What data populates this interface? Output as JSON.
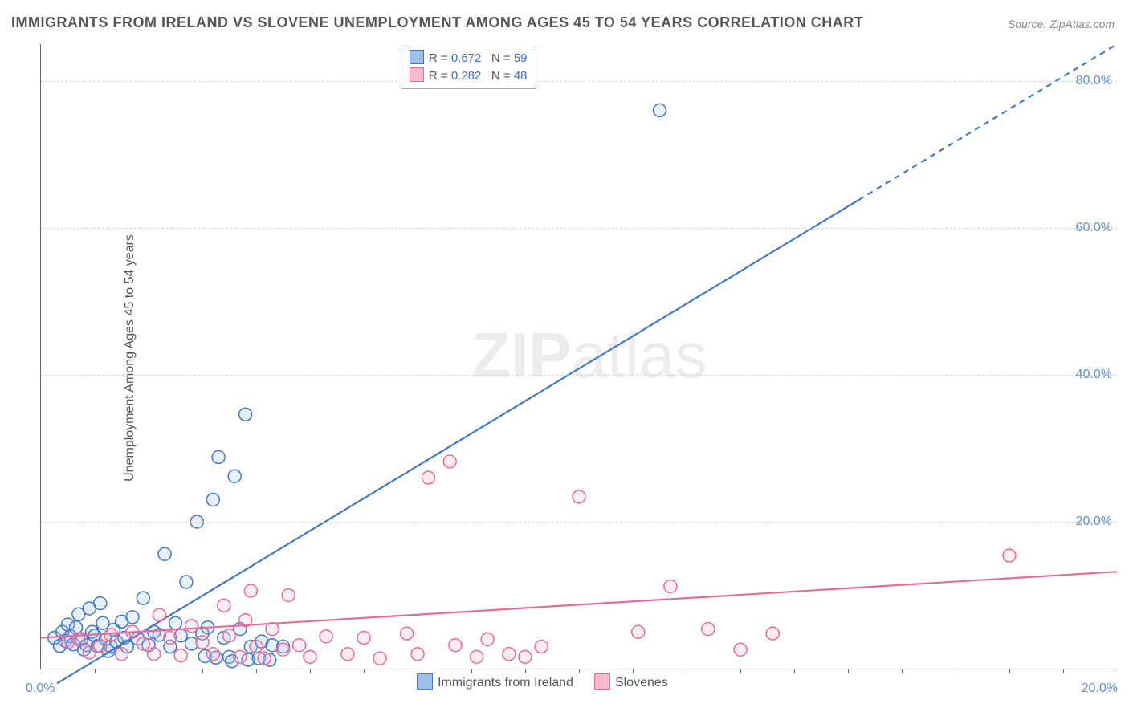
{
  "title": "IMMIGRANTS FROM IRELAND VS SLOVENE UNEMPLOYMENT AMONG AGES 45 TO 54 YEARS CORRELATION CHART",
  "source_label": "Source: ZipAtlas.com",
  "ylabel": "Unemployment Among Ages 45 to 54 years",
  "watermark_a": "ZIP",
  "watermark_b": "atlas",
  "chart": {
    "type": "scatter-with-regression",
    "xlim": [
      0,
      20
    ],
    "ylim": [
      0,
      85
    ],
    "x_origin_label": "0.0%",
    "x_end_label": "20.0%",
    "y_ticks": [
      {
        "v": 20,
        "label": "20.0%"
      },
      {
        "v": 40,
        "label": "40.0%"
      },
      {
        "v": 60,
        "label": "60.0%"
      },
      {
        "v": 80,
        "label": "80.0%"
      }
    ],
    "x_minor_tick_step": 1,
    "background_color": "#ffffff",
    "grid_color": "#d8d8d8",
    "axis_color": "#666666",
    "tick_label_color": "#5b8fd6",
    "marker_radius": 8,
    "marker_stroke_width": 1.5,
    "marker_fill_opacity": 0.25,
    "line_width": 2.2,
    "series": [
      {
        "id": "ireland",
        "label": "Immigrants from Ireland",
        "color_stroke": "#3f78c9",
        "color_fill": "#9fc0e8",
        "R": "0.672",
        "N": "59",
        "regression": {
          "x1": 0.3,
          "y1": -2,
          "x2": 20,
          "y2": 85,
          "dash_from_x": 15.2
        },
        "points": [
          [
            0.25,
            4.2
          ],
          [
            0.35,
            3.1
          ],
          [
            0.4,
            5.0
          ],
          [
            0.45,
            3.8
          ],
          [
            0.5,
            6.0
          ],
          [
            0.55,
            4.4
          ],
          [
            0.6,
            3.3
          ],
          [
            0.65,
            5.6
          ],
          [
            0.7,
            7.4
          ],
          [
            0.75,
            4.0
          ],
          [
            0.8,
            2.6
          ],
          [
            0.85,
            3.2
          ],
          [
            0.9,
            8.2
          ],
          [
            0.95,
            5.0
          ],
          [
            1.0,
            4.5
          ],
          [
            1.05,
            3.1
          ],
          [
            1.1,
            8.9
          ],
          [
            1.15,
            6.2
          ],
          [
            1.2,
            4.0
          ],
          [
            1.25,
            2.4
          ],
          [
            1.3,
            3.0
          ],
          [
            1.35,
            5.3
          ],
          [
            1.4,
            3.7
          ],
          [
            1.5,
            6.4
          ],
          [
            1.55,
            4.2
          ],
          [
            1.6,
            3.0
          ],
          [
            1.7,
            7.0
          ],
          [
            1.8,
            4.1
          ],
          [
            1.9,
            9.6
          ],
          [
            2.0,
            3.2
          ],
          [
            2.1,
            5.0
          ],
          [
            2.2,
            4.6
          ],
          [
            2.3,
            15.6
          ],
          [
            2.4,
            3.0
          ],
          [
            2.5,
            6.2
          ],
          [
            2.6,
            4.5
          ],
          [
            2.7,
            11.8
          ],
          [
            2.8,
            3.4
          ],
          [
            2.9,
            20.0
          ],
          [
            3.0,
            4.8
          ],
          [
            3.05,
            1.7
          ],
          [
            3.1,
            5.6
          ],
          [
            3.2,
            23.0
          ],
          [
            3.25,
            1.5
          ],
          [
            3.3,
            28.8
          ],
          [
            3.4,
            4.2
          ],
          [
            3.5,
            1.6
          ],
          [
            3.55,
            1.0
          ],
          [
            3.6,
            26.2
          ],
          [
            3.7,
            5.4
          ],
          [
            3.8,
            34.6
          ],
          [
            3.85,
            1.2
          ],
          [
            3.9,
            3.0
          ],
          [
            4.05,
            1.4
          ],
          [
            4.1,
            3.7
          ],
          [
            4.25,
            1.2
          ],
          [
            4.3,
            3.2
          ],
          [
            4.5,
            3.0
          ],
          [
            11.5,
            76.0
          ]
        ]
      },
      {
        "id": "slovenes",
        "label": "Slovenes",
        "color_stroke": "#e76a9a",
        "color_fill": "#f6b9cf",
        "R": "0.282",
        "N": "48",
        "regression": {
          "x1": 0,
          "y1": 4.2,
          "x2": 20,
          "y2": 13.2,
          "dash_from_x": 999
        },
        "points": [
          [
            0.5,
            3.6
          ],
          [
            0.7,
            4.0
          ],
          [
            0.9,
            2.2
          ],
          [
            1.1,
            3.1
          ],
          [
            1.3,
            4.6
          ],
          [
            1.5,
            2.0
          ],
          [
            1.7,
            5.0
          ],
          [
            1.9,
            3.4
          ],
          [
            2.1,
            2.0
          ],
          [
            2.2,
            7.3
          ],
          [
            2.4,
            4.2
          ],
          [
            2.6,
            1.8
          ],
          [
            2.8,
            5.8
          ],
          [
            3.0,
            3.6
          ],
          [
            3.2,
            2.0
          ],
          [
            3.4,
            8.6
          ],
          [
            3.5,
            4.5
          ],
          [
            3.7,
            1.6
          ],
          [
            3.8,
            6.6
          ],
          [
            3.9,
            10.6
          ],
          [
            4.0,
            3.0
          ],
          [
            4.15,
            1.4
          ],
          [
            4.3,
            5.4
          ],
          [
            4.5,
            2.6
          ],
          [
            4.6,
            10.0
          ],
          [
            4.8,
            3.2
          ],
          [
            5.0,
            1.6
          ],
          [
            5.3,
            4.4
          ],
          [
            5.7,
            2.0
          ],
          [
            6.0,
            4.2
          ],
          [
            6.3,
            1.4
          ],
          [
            6.8,
            4.8
          ],
          [
            7.0,
            2.0
          ],
          [
            7.2,
            26.0
          ],
          [
            7.6,
            28.2
          ],
          [
            7.7,
            3.2
          ],
          [
            8.1,
            1.6
          ],
          [
            8.3,
            4.0
          ],
          [
            8.7,
            2.0
          ],
          [
            9.0,
            1.6
          ],
          [
            9.3,
            3.0
          ],
          [
            10.0,
            23.4
          ],
          [
            11.1,
            5.0
          ],
          [
            11.7,
            11.2
          ],
          [
            12.4,
            5.4
          ],
          [
            13.0,
            2.6
          ],
          [
            13.6,
            4.8
          ],
          [
            18.0,
            15.4
          ]
        ]
      }
    ]
  },
  "legend_top": {
    "rows": [
      {
        "series": "ireland",
        "r_label": "R =",
        "n_label": "N ="
      },
      {
        "series": "slovenes",
        "r_label": "R =",
        "n_label": "N ="
      }
    ]
  },
  "legend_bottom": {
    "items": [
      {
        "series": "ireland"
      },
      {
        "series": "slovenes"
      }
    ]
  }
}
